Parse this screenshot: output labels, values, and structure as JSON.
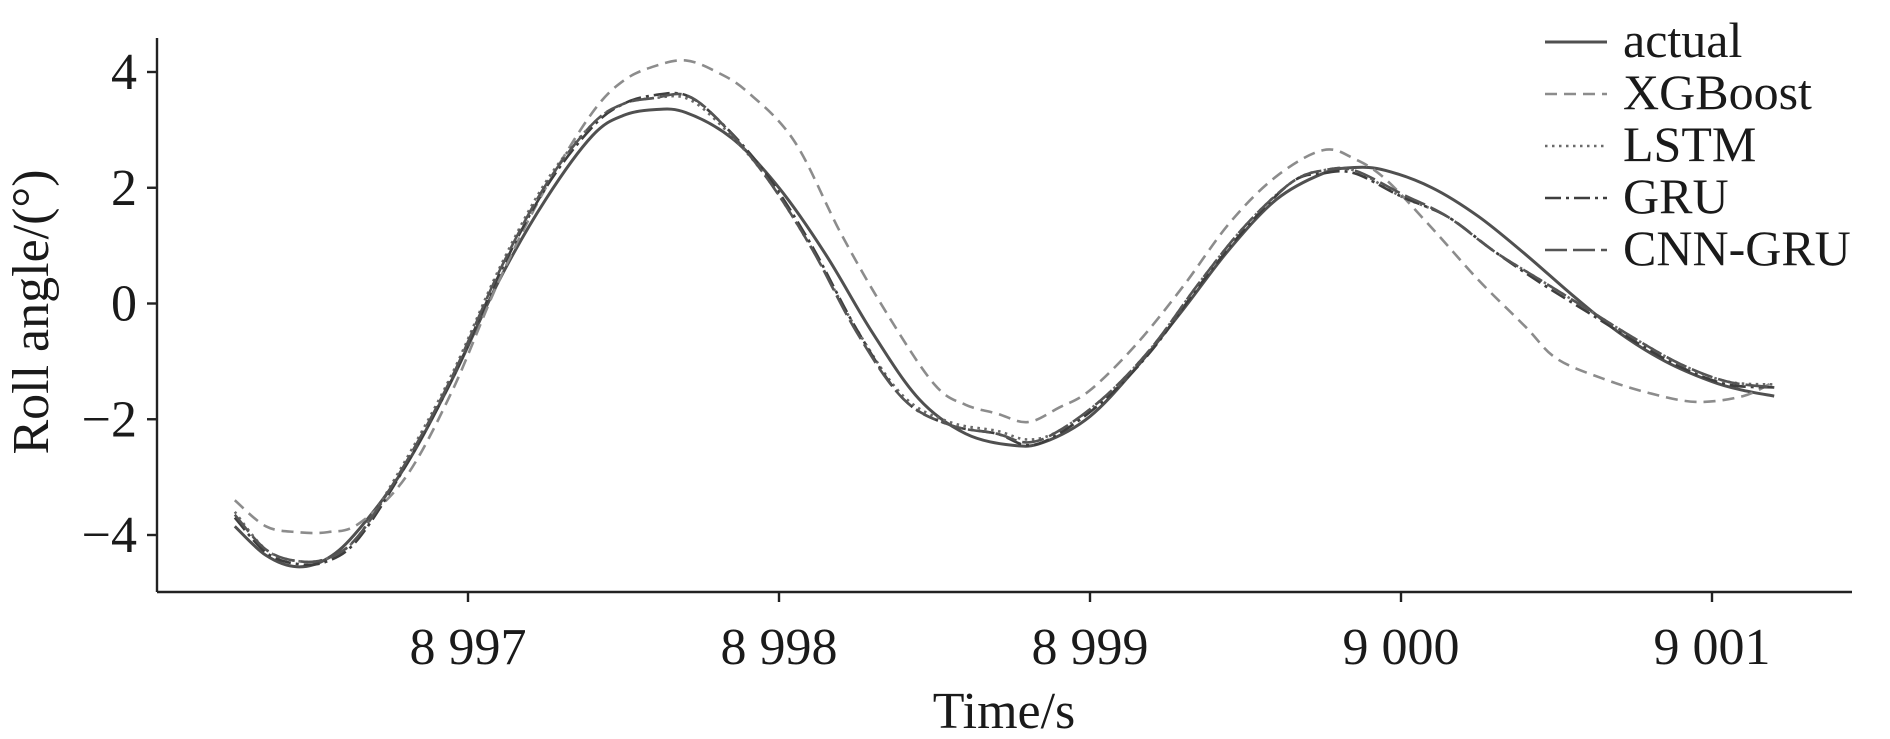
{
  "chart_data": {
    "type": "line",
    "xlabel": "Time/s",
    "ylabel": "Roll angle/(°)",
    "xlim": [
      8996.05,
      9001.45
    ],
    "ylim": [
      -5.0,
      4.7
    ],
    "xticks": [
      8997,
      8998,
      8999,
      9000,
      9001
    ],
    "xtick_labels": [
      "8 997",
      "8 998",
      "8 999",
      "9 000",
      "9 001"
    ],
    "yticks": [
      -4,
      -2,
      0,
      2,
      4
    ],
    "ytick_labels": [
      "−4",
      "−2",
      "0",
      "2",
      "4"
    ],
    "grid": false,
    "legend_position": "top-right",
    "series": [
      {
        "name": "actual",
        "color": "#505050",
        "dash": "solid",
        "x": [
          8996.25,
          8996.35,
          8996.45,
          8996.55,
          8996.65,
          8996.8,
          8996.95,
          8997.1,
          8997.25,
          8997.4,
          8997.5,
          8997.6,
          8997.7,
          8997.85,
          8998.0,
          8998.15,
          8998.3,
          8998.45,
          8998.6,
          8998.75,
          8998.85,
          8999.0,
          8999.15,
          8999.3,
          8999.45,
          8999.6,
          8999.75,
          8999.85,
          8999.95,
          9000.1,
          9000.25,
          9000.4,
          9000.55,
          9000.7,
          9000.85,
          9001.0,
          9001.1,
          9001.2
        ],
        "y": [
          -3.85,
          -4.35,
          -4.55,
          -4.4,
          -3.9,
          -2.8,
          -1.3,
          0.4,
          1.8,
          2.9,
          3.25,
          3.35,
          3.3,
          2.85,
          2.0,
          0.85,
          -0.5,
          -1.65,
          -2.25,
          -2.45,
          -2.4,
          -1.95,
          -1.1,
          -0.1,
          0.95,
          1.8,
          2.25,
          2.35,
          2.3,
          2.0,
          1.5,
          0.85,
          0.15,
          -0.5,
          -1.0,
          -1.35,
          -1.5,
          -1.6
        ]
      },
      {
        "name": "XGBoost",
        "color": "#8c8c8c",
        "dash": "12,7",
        "x": [
          8996.25,
          8996.35,
          8996.45,
          8996.55,
          8996.65,
          8996.8,
          8996.95,
          8997.1,
          8997.25,
          8997.4,
          8997.5,
          8997.6,
          8997.7,
          8997.8,
          8997.9,
          8998.05,
          8998.2,
          8998.35,
          8998.5,
          8998.6,
          8998.7,
          8998.8,
          8998.9,
          8999.0,
          8999.15,
          8999.3,
          8999.45,
          8999.6,
          8999.75,
          8999.85,
          8999.95,
          9000.1,
          9000.25,
          9000.4,
          9000.5,
          9000.65,
          9000.8,
          9000.95,
          9001.1,
          9001.2
        ],
        "y": [
          -3.4,
          -3.85,
          -3.95,
          -3.95,
          -3.8,
          -3.0,
          -1.5,
          0.4,
          2.0,
          3.3,
          3.85,
          4.1,
          4.2,
          4.0,
          3.65,
          2.8,
          1.2,
          -0.2,
          -1.4,
          -1.75,
          -1.9,
          -2.05,
          -1.8,
          -1.5,
          -0.7,
          0.3,
          1.4,
          2.2,
          2.65,
          2.5,
          2.15,
          1.3,
          0.4,
          -0.4,
          -0.95,
          -1.3,
          -1.55,
          -1.7,
          -1.6,
          -1.35
        ]
      },
      {
        "name": "LSTM",
        "color": "#6a6a6a",
        "dash": "2.5,4.5",
        "x": [
          8996.25,
          8996.35,
          8996.45,
          8996.55,
          8996.65,
          8996.8,
          8996.95,
          8997.1,
          8997.25,
          8997.4,
          8997.5,
          8997.6,
          8997.7,
          8997.8,
          8997.95,
          8998.1,
          8998.25,
          8998.4,
          8998.55,
          8998.7,
          8998.8,
          8998.9,
          8999.05,
          8999.2,
          8999.35,
          8999.5,
          8999.65,
          8999.75,
          8999.85,
          9000.0,
          9000.15,
          9000.3,
          9000.45,
          9000.6,
          9000.75,
          9000.9,
          9001.05,
          9001.2
        ],
        "y": [
          -3.6,
          -4.25,
          -4.45,
          -4.4,
          -4.0,
          -2.7,
          -1.2,
          0.6,
          2.1,
          3.1,
          3.45,
          3.55,
          3.55,
          3.15,
          2.25,
          1.0,
          -0.45,
          -1.6,
          -2.05,
          -2.2,
          -2.35,
          -2.2,
          -1.6,
          -0.75,
          0.35,
          1.35,
          2.1,
          2.3,
          2.3,
          1.85,
          1.5,
          0.9,
          0.4,
          -0.1,
          -0.6,
          -1.05,
          -1.35,
          -1.4
        ]
      },
      {
        "name": "GRU",
        "color": "#3e3e3e",
        "dash": "16,5,3,5",
        "x": [
          8996.25,
          8996.35,
          8996.45,
          8996.55,
          8996.65,
          8996.8,
          8996.95,
          8997.1,
          8997.25,
          8997.4,
          8997.5,
          8997.6,
          8997.7,
          8997.8,
          8997.95,
          8998.1,
          8998.25,
          8998.4,
          8998.55,
          8998.7,
          8998.8,
          8998.9,
          8999.05,
          8999.2,
          8999.35,
          8999.5,
          8999.65,
          8999.75,
          8999.85,
          9000.0,
          9000.15,
          9000.3,
          9000.45,
          9000.6,
          9000.75,
          9000.9,
          9001.05,
          9001.2
        ],
        "y": [
          -3.7,
          -4.3,
          -4.5,
          -4.45,
          -4.05,
          -2.8,
          -1.3,
          0.5,
          2.0,
          3.05,
          3.45,
          3.6,
          3.6,
          3.2,
          2.3,
          1.05,
          -0.45,
          -1.65,
          -2.1,
          -2.25,
          -2.45,
          -2.25,
          -1.65,
          -0.8,
          0.3,
          1.3,
          2.1,
          2.25,
          2.25,
          1.85,
          1.5,
          0.9,
          0.35,
          -0.15,
          -0.65,
          -1.1,
          -1.4,
          -1.45
        ]
      },
      {
        "name": "CNN-GRU",
        "color": "#555555",
        "dash": "22,6",
        "x": [
          8996.25,
          8996.35,
          8996.45,
          8996.55,
          8996.65,
          8996.8,
          8996.95,
          8997.1,
          8997.25,
          8997.4,
          8997.5,
          8997.6,
          8997.7,
          8997.8,
          8997.95,
          8998.1,
          8998.25,
          8998.4,
          8998.55,
          8998.7,
          8998.8,
          8998.9,
          8999.05,
          8999.2,
          8999.35,
          8999.5,
          8999.65,
          8999.75,
          8999.85,
          9000.0,
          9000.15,
          9000.3,
          9000.45,
          9000.6,
          9000.75,
          9000.9,
          9001.05,
          9001.2
        ],
        "y": [
          -3.65,
          -4.25,
          -4.45,
          -4.4,
          -4.0,
          -2.75,
          -1.25,
          0.55,
          2.05,
          3.1,
          3.45,
          3.55,
          3.6,
          3.2,
          2.25,
          1.0,
          -0.5,
          -1.65,
          -2.1,
          -2.25,
          -2.4,
          -2.2,
          -1.6,
          -0.75,
          0.35,
          1.35,
          2.1,
          2.3,
          2.3,
          1.9,
          1.5,
          0.9,
          0.4,
          -0.1,
          -0.6,
          -1.05,
          -1.35,
          -1.45
        ]
      }
    ]
  }
}
